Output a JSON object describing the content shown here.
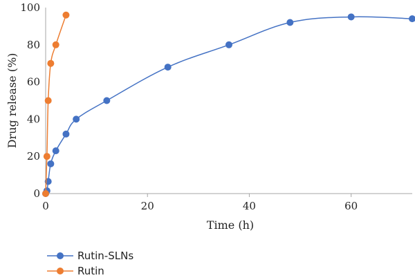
{
  "chart_data": {
    "type": "line",
    "title": "",
    "xlabel": "Time (h)",
    "ylabel": "Drug release (%)",
    "xlim": [
      0,
      72
    ],
    "ylim": [
      0,
      100
    ],
    "xticks": [
      0,
      20,
      40,
      60
    ],
    "yticks": [
      0,
      20,
      40,
      60,
      80,
      100
    ],
    "grid": false,
    "legend_position": "bottom-left",
    "series": [
      {
        "name": "Rutin-SLNs",
        "color": "#4472C4",
        "x": [
          0,
          0.25,
          0.5,
          1,
          2,
          4,
          6,
          12,
          24,
          36,
          48,
          60,
          72
        ],
        "y": [
          0,
          1.5,
          6.5,
          16,
          23,
          32,
          40,
          50,
          68,
          80,
          92,
          95,
          94
        ]
      },
      {
        "name": "Rutin",
        "color": "#ED7D31",
        "x": [
          0,
          0.25,
          0.5,
          1,
          2,
          4
        ],
        "y": [
          0,
          20,
          50,
          70,
          80,
          96
        ]
      }
    ]
  }
}
